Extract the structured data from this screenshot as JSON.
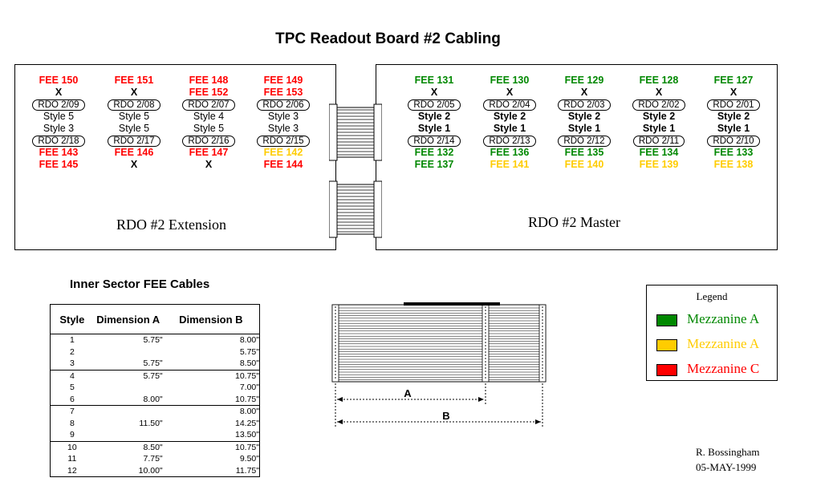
{
  "title": "TPC Readout Board #2 Cabling",
  "colors": {
    "red": "#ff0000",
    "green": "#008800",
    "yellow": "#ffcc00"
  },
  "extension": {
    "label": "RDO #2 Extension",
    "columns": [
      {
        "top_fee": "FEE 150",
        "top_fee_color": "red",
        "top_fee2": "X",
        "top_fee2_color": "black",
        "rdo_top": "RDO 2/09",
        "style_a": "Style 5",
        "style_b": "Style 3",
        "rdo_bottom": "RDO 2/18",
        "bottom_fee": "FEE 143",
        "bottom_fee_color": "red",
        "bottom_fee2": "FEE 145",
        "bottom_fee2_color": "red"
      },
      {
        "top_fee": "FEE 151",
        "top_fee_color": "red",
        "top_fee2": "X",
        "top_fee2_color": "black",
        "rdo_top": "RDO 2/08",
        "style_a": "Style 5",
        "style_b": "Style 5",
        "rdo_bottom": "RDO 2/17",
        "bottom_fee": "FEE 146",
        "bottom_fee_color": "red",
        "bottom_fee2": "X",
        "bottom_fee2_color": "black"
      },
      {
        "top_fee": "FEE 148",
        "top_fee_color": "red",
        "top_fee2": "FEE 152",
        "top_fee2_color": "red",
        "rdo_top": "RDO 2/07",
        "style_a": "Style 4",
        "style_b": "Style 5",
        "rdo_bottom": "RDO 2/16",
        "bottom_fee": "FEE 147",
        "bottom_fee_color": "red",
        "bottom_fee2": "X",
        "bottom_fee2_color": "black"
      },
      {
        "top_fee": "FEE 149",
        "top_fee_color": "red",
        "top_fee2": "FEE 153",
        "top_fee2_color": "red",
        "rdo_top": "RDO 2/06",
        "style_a": "Style 3",
        "style_b": "Style 3",
        "rdo_bottom": "RDO 2/15",
        "bottom_fee": "FEE 142",
        "bottom_fee_color": "yellow",
        "bottom_fee2": "FEE 144",
        "bottom_fee2_color": "red"
      }
    ]
  },
  "master": {
    "label": "RDO #2 Master",
    "columns": [
      {
        "top_fee": "FEE 131",
        "top_fee_color": "green",
        "top_fee2": "X",
        "top_fee2_color": "black",
        "rdo_top": "RDO 2/05",
        "style_a": "Style 2",
        "style_b": "Style 1",
        "rdo_bottom": "RDO 2/14",
        "bottom_fee": "FEE 132",
        "bottom_fee_color": "green",
        "bottom_fee2": "FEE 137",
        "bottom_fee2_color": "green"
      },
      {
        "top_fee": "FEE 130",
        "top_fee_color": "green",
        "top_fee2": "X",
        "top_fee2_color": "black",
        "rdo_top": "RDO 2/04",
        "style_a": "Style 2",
        "style_b": "Style 1",
        "rdo_bottom": "RDO 2/13",
        "bottom_fee": "FEE 136",
        "bottom_fee_color": "green",
        "bottom_fee2": "FEE 141",
        "bottom_fee2_color": "yellow"
      },
      {
        "top_fee": "FEE 129",
        "top_fee_color": "green",
        "top_fee2": "X",
        "top_fee2_color": "black",
        "rdo_top": "RDO 2/03",
        "style_a": "Style 2",
        "style_b": "Style 1",
        "rdo_bottom": "RDO 2/12",
        "bottom_fee": "FEE 135",
        "bottom_fee_color": "green",
        "bottom_fee2": "FEE 140",
        "bottom_fee2_color": "yellow"
      },
      {
        "top_fee": "FEE 128",
        "top_fee_color": "green",
        "top_fee2": "X",
        "top_fee2_color": "black",
        "rdo_top": "RDO 2/02",
        "style_a": "Style 2",
        "style_b": "Style 1",
        "rdo_bottom": "RDO 2/11",
        "bottom_fee": "FEE 134",
        "bottom_fee_color": "green",
        "bottom_fee2": "FEE 139",
        "bottom_fee2_color": "yellow"
      },
      {
        "top_fee": "FEE 127",
        "top_fee_color": "green",
        "top_fee2": "X",
        "top_fee2_color": "black",
        "rdo_top": "RDO 2/01",
        "style_a": "Style 2",
        "style_b": "Style 1",
        "rdo_bottom": "RDO 2/10",
        "bottom_fee": "FEE 133",
        "bottom_fee_color": "green",
        "bottom_fee2": "FEE 138",
        "bottom_fee2_color": "yellow"
      }
    ]
  },
  "cables": {
    "title": "Inner Sector FEE Cables",
    "headers": {
      "style": "Style",
      "dim_a": "Dimension A",
      "dim_b": "Dimension B"
    },
    "rows": [
      {
        "style": "1",
        "a": "5.75\"",
        "b": "8.00\"",
        "group_start": false
      },
      {
        "style": "2",
        "a": "",
        "b": "5.75\"",
        "group_start": false
      },
      {
        "style": "3",
        "a": "5.75\"",
        "b": "8.50\"",
        "group_start": false
      },
      {
        "style": "4",
        "a": "5.75\"",
        "b": "10.75\"",
        "group_start": true
      },
      {
        "style": "5",
        "a": "",
        "b": "7.00\"",
        "group_start": false
      },
      {
        "style": "6",
        "a": "8.00\"",
        "b": "10.75\"",
        "group_start": false
      },
      {
        "style": "7",
        "a": "",
        "b": "8.00\"",
        "group_start": true
      },
      {
        "style": "8",
        "a": "11.50\"",
        "b": "14.25\"",
        "group_start": false
      },
      {
        "style": "9",
        "a": "",
        "b": "13.50\"",
        "group_start": false
      },
      {
        "style": "10",
        "a": "8.50\"",
        "b": "10.75\"",
        "group_start": true
      },
      {
        "style": "11",
        "a": "7.75\"",
        "b": "9.50\"",
        "group_start": false
      },
      {
        "style": "12",
        "a": "10.00\"",
        "b": "11.75\"",
        "group_start": false
      }
    ]
  },
  "cable_diagram": {
    "label_a": "A",
    "label_b": "B"
  },
  "legend": {
    "title": "Legend",
    "items": [
      {
        "label": "Mezzanine A",
        "color": "#008800"
      },
      {
        "label": "Mezzanine A",
        "color": "#ffcc00"
      },
      {
        "label": "Mezzanine C",
        "color": "#ff0000"
      }
    ]
  },
  "author": {
    "name": "R. Bossingham",
    "date": "05-MAY-1999"
  }
}
